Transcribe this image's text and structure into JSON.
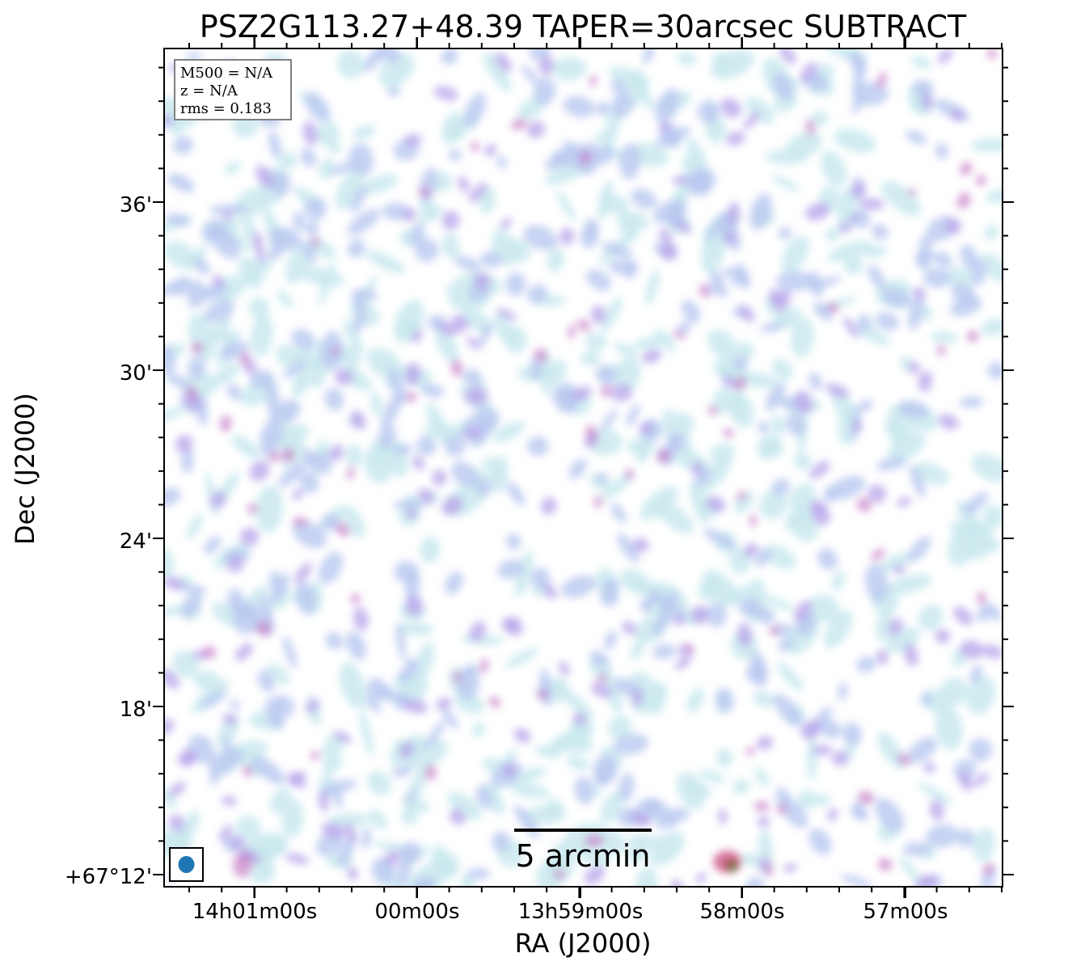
{
  "chart_data": {
    "type": "heatmap",
    "title": "PSZ2G113.27+48.39 TAPER=30arcsec SUBTRACT",
    "xlabel": "RA (J2000)",
    "ylabel": "Dec (J2000)",
    "x_tick_labels": [
      "14h01m00s",
      "00m00s",
      "13h59m00s",
      "58m00s",
      "57m00s"
    ],
    "y_tick_labels": [
      "+67°12'",
      "18'",
      "24'",
      "30'",
      "36'"
    ],
    "info_box": [
      "M500 = N/A",
      "z = N/A",
      "rms = 0.183"
    ],
    "scalebar_label": "5 arcmin",
    "colormap": [
      "#ffffff",
      "#c9e9ef",
      "#b9c8f0",
      "#b7a2ea",
      "#c77fc7",
      "#d56b9a",
      "#b85a5a",
      "#2e7d32"
    ],
    "beam_color": "#1f77b4"
  }
}
